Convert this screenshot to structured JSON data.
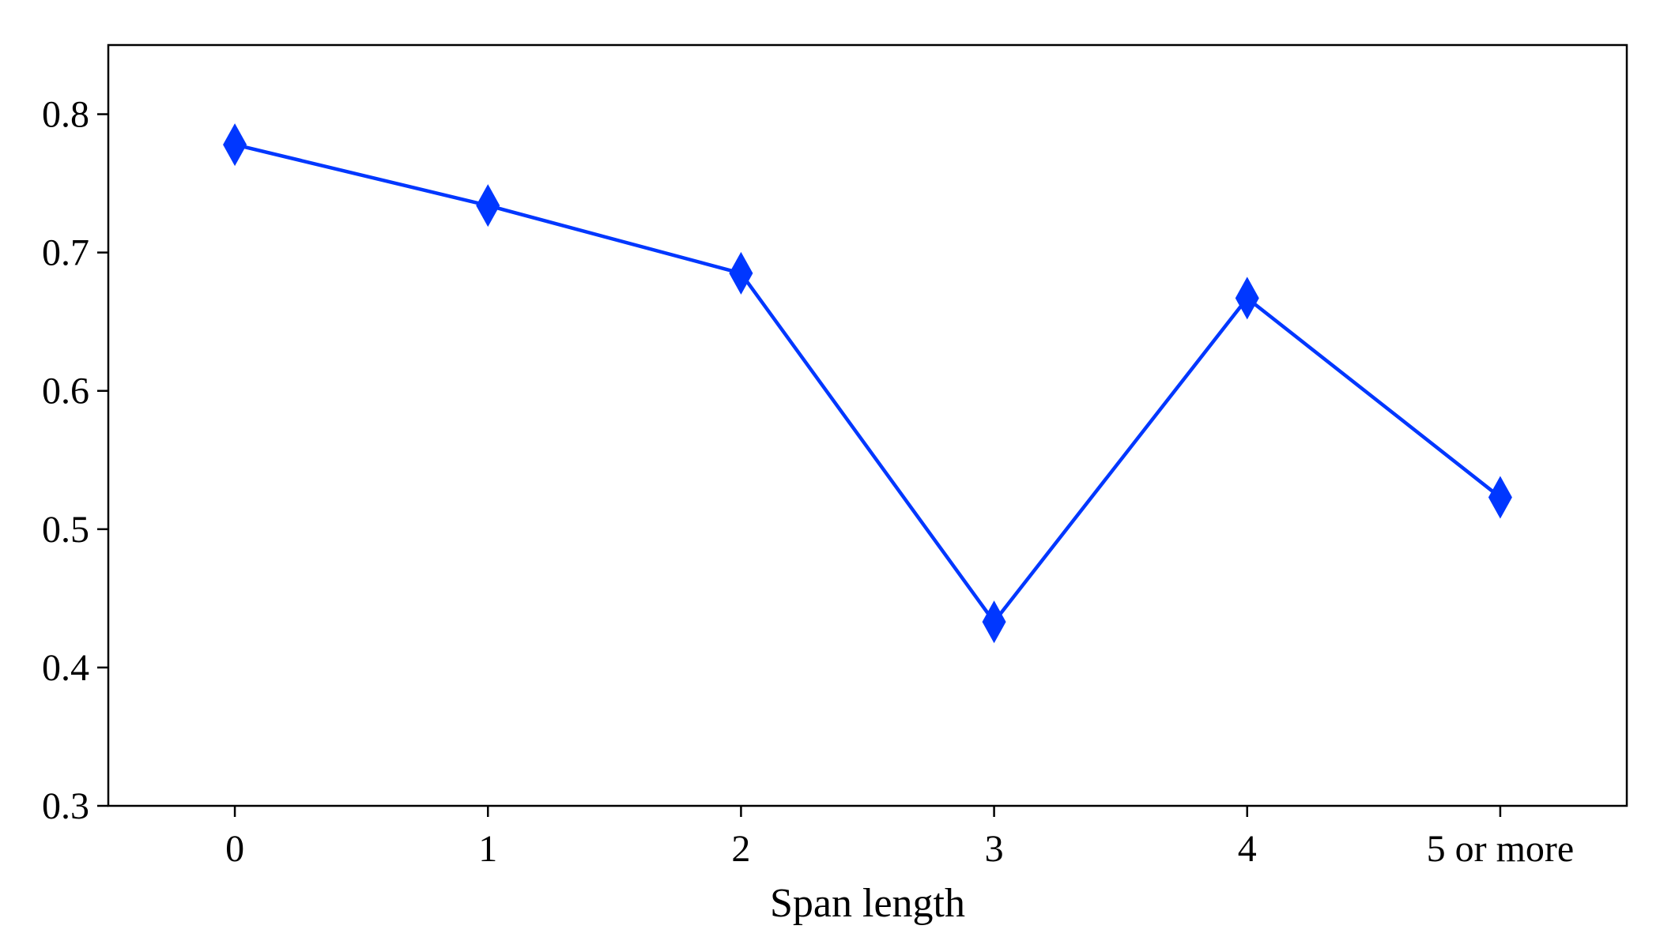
{
  "chart_data": {
    "type": "line",
    "title": "",
    "xlabel": "Span length",
    "ylabel": "",
    "categories": [
      "0",
      "1",
      "2",
      "3",
      "4",
      "5 or more"
    ],
    "series": [
      {
        "values": [
          0.778,
          0.734,
          0.685,
          0.433,
          0.667,
          0.523
        ],
        "color": "#0037FF",
        "marker": "diamond"
      }
    ],
    "ylim": [
      0.3,
      0.85
    ],
    "yticks": [
      0.3,
      0.4,
      0.5,
      0.6,
      0.7,
      0.8
    ],
    "ytick_labels": [
      "0.3",
      "0.4",
      "0.5",
      "0.6",
      "0.7",
      "0.8"
    ],
    "grid": false,
    "legend": "none"
  }
}
